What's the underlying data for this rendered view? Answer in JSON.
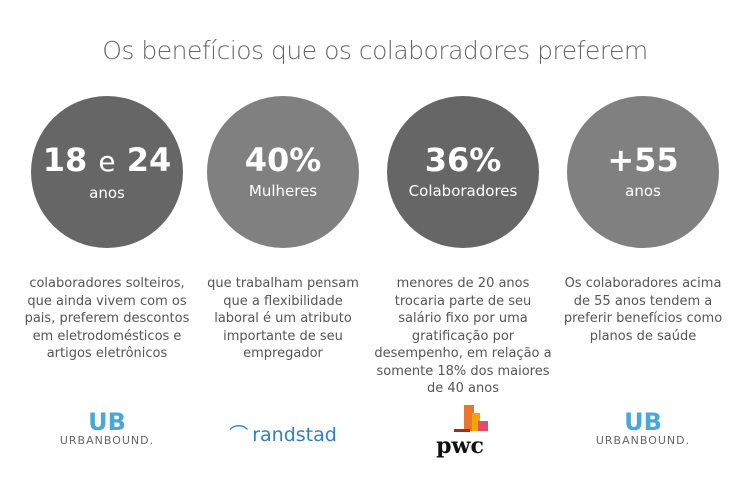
{
  "title": "Os benefícios que os colaboradores preferem",
  "colors": {
    "dark_circle": "#666666",
    "light_circle": "#808080",
    "urbanbound": "#4aa8d8",
    "randstad": "#2f7fc4",
    "pwc_orange": "#e8772a"
  },
  "stats": [
    {
      "num1": "18",
      "conj": "e",
      "num2": "24",
      "label": "anos",
      "desc": "colaboradores solteiros, que ainda vivem com os pais, preferem descontos em eletrodomésticos e artigos eletrônicos",
      "logo": "URBANBOUND."
    },
    {
      "num": "40%",
      "label": "Mulheres",
      "desc": "que trabalham pensam que a flexibilidade laboral é um atributo importante de seu empregador",
      "logo": "randstad"
    },
    {
      "num": "36%",
      "label": "Colaboradores",
      "desc": "menores de 20 anos trocaria parte de seu salário fixo por uma gratificação por desempenho, em relação a somente 18% dos maiores de 40 anos",
      "logo": "pwc"
    },
    {
      "num": "+55",
      "label": "anos",
      "desc": "Os colaboradores acima de 55 anos tendem a preferir benefícios como planos de saúde",
      "logo": "URBANBOUND."
    }
  ]
}
